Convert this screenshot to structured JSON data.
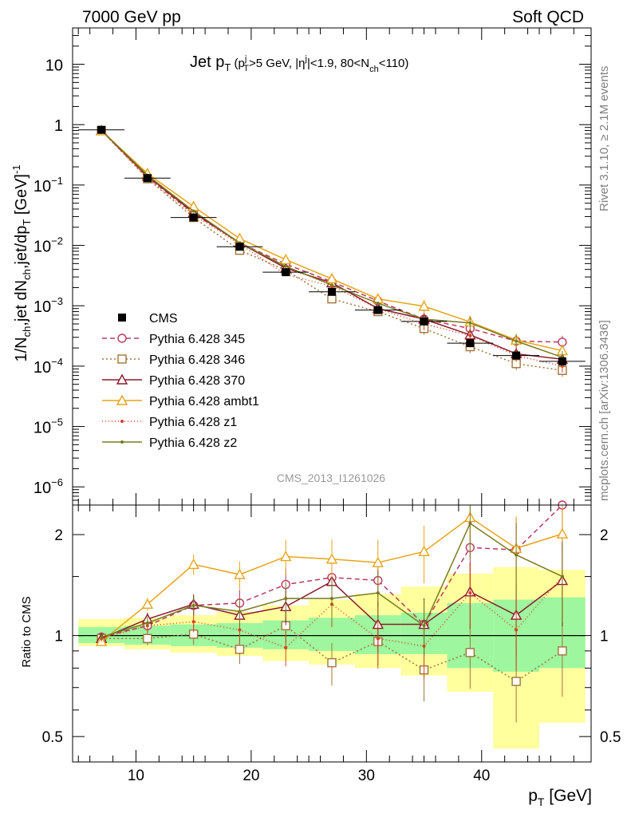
{
  "header": {
    "left": "7000 GeV pp",
    "right": "Soft QCD"
  },
  "side_labels": {
    "rivet": "Rivet 3.1.10, ≥ 2.1M events",
    "mcplots": "mcplots.cern.ch [arXiv:1306.3436]"
  },
  "analysis_id": "CMS_2013_I1261026",
  "chart_data": [
    {
      "type": "line",
      "name": "main",
      "title_parts": {
        "main": "Jet p",
        "sub": "T",
        "rest": " (p",
        "sup_j": "j",
        "sub_T": "T",
        "rest2": ">5 GeV, |η",
        "sup_j2": "j",
        "rest3": "|<1.9, 80<N",
        "sub_ch": "ch",
        "rest4": "<110)"
      },
      "ylabel_parts": {
        "a": "1/N",
        "b": "ch",
        "c": ",jet dN",
        "d": "ch",
        "e": ",jet/dp",
        "f": "T",
        "g": " [GeV]",
        "h": "-1"
      },
      "xlabel_parts": {
        "a": "p",
        "b": "T",
        "c": " [GeV]"
      },
      "yscale": "log",
      "ylim": [
        5e-07,
        40
      ],
      "xlim": [
        4.5,
        49.5
      ],
      "yticks": [
        {
          "value": 10,
          "label": "10"
        },
        {
          "value": 1,
          "label": "1"
        },
        {
          "value": 0.1,
          "base": "10",
          "exp": "−1"
        },
        {
          "value": 0.01,
          "base": "10",
          "exp": "−2"
        },
        {
          "value": 0.001,
          "base": "10",
          "exp": "−3"
        },
        {
          "value": 0.0001,
          "base": "10",
          "exp": "−4"
        },
        {
          "value": 1e-05,
          "base": "10",
          "exp": "−5"
        },
        {
          "value": 1e-06,
          "base": "10",
          "exp": "−6"
        }
      ],
      "x": [
        7,
        11,
        15,
        19,
        23,
        27,
        31,
        35,
        39,
        43,
        47
      ],
      "data": {
        "name": "CMS",
        "values": [
          0.82,
          0.13,
          0.029,
          0.0095,
          0.0036,
          0.0017,
          0.00085,
          0.00055,
          0.00024,
          0.00015,
          0.00012
        ],
        "xerr": 2
      },
      "series": [
        {
          "name": "Pythia 6.428 345",
          "color": "#b83a5e",
          "dash": "6,4",
          "marker": "open-circle",
          "values": [
            0.8,
            0.135,
            0.034,
            0.011,
            0.0049,
            0.0025,
            0.0012,
            0.0006,
            0.00042,
            0.00026,
            0.00025
          ]
        },
        {
          "name": "Pythia 6.428 346",
          "color": "#a0743a",
          "dash": "2,3",
          "marker": "open-square",
          "values": [
            0.8,
            0.127,
            0.029,
            0.0083,
            0.0039,
            0.0013,
            0.0008,
            0.00042,
            0.00021,
            0.00011,
            8.5e-05
          ]
        },
        {
          "name": "Pythia 6.428 370",
          "color": "#8b1a2a",
          "dash": "",
          "marker": "open-triangle",
          "values": [
            0.8,
            0.14,
            0.035,
            0.011,
            0.0042,
            0.0024,
            0.0009,
            0.0006,
            0.00033,
            0.00016,
            0.00013
          ]
        },
        {
          "name": "Pythia 6.428 ambt1",
          "color": "#e8a317",
          "dash": "",
          "marker": "open-triangle",
          "values": [
            0.79,
            0.155,
            0.044,
            0.013,
            0.0058,
            0.0028,
            0.0013,
            0.00098,
            0.00054,
            0.00027,
            0.00018
          ]
        },
        {
          "name": "Pythia 6.428 z1",
          "color": "#d9411e",
          "dash": "1,3",
          "marker": "dot",
          "values": [
            0.8,
            0.13,
            0.032,
            0.0105,
            0.0033,
            0.0021,
            0.0009,
            0.0005,
            0.00032,
            0.00015,
            0.0001
          ]
        },
        {
          "name": "Pythia 6.428 z2",
          "color": "#7a7a1e",
          "dash": "",
          "marker": "dot",
          "values": [
            0.81,
            0.145,
            0.037,
            0.011,
            0.0045,
            0.0022,
            0.0011,
            0.0006,
            0.00052,
            0.00026,
            0.00014
          ]
        }
      ]
    },
    {
      "type": "line",
      "name": "ratio",
      "ylabel": "Ratio to CMS",
      "yscale": "log",
      "ylim": [
        0.42,
        2.45
      ],
      "xlim": [
        4.5,
        49.5
      ],
      "xticks": [
        10,
        20,
        30,
        40
      ],
      "yticks": [
        {
          "value": 2,
          "label": "2"
        },
        {
          "value": 1,
          "label": "1"
        },
        {
          "value": 0.5,
          "label": "0.5"
        }
      ],
      "x": [
        7,
        11,
        15,
        19,
        23,
        27,
        31,
        35,
        39,
        43,
        47
      ],
      "band_inner": [
        [
          0.95,
          1.06
        ],
        [
          0.94,
          1.07
        ],
        [
          0.93,
          1.08
        ],
        [
          0.92,
          1.09
        ],
        [
          0.91,
          1.11
        ],
        [
          0.9,
          1.13
        ],
        [
          0.88,
          1.15
        ],
        [
          0.88,
          1.17
        ],
        [
          0.8,
          1.25
        ],
        [
          0.78,
          1.28
        ],
        [
          0.8,
          1.3
        ]
      ],
      "band_outer": [
        [
          0.93,
          1.12
        ],
        [
          0.91,
          1.13
        ],
        [
          0.89,
          1.15
        ],
        [
          0.87,
          1.18
        ],
        [
          0.84,
          1.23
        ],
        [
          0.82,
          1.28
        ],
        [
          0.8,
          1.33
        ],
        [
          0.76,
          1.4
        ],
        [
          0.68,
          1.53
        ],
        [
          0.46,
          1.6
        ],
        [
          0.55,
          1.57
        ]
      ],
      "series": [
        {
          "name": "Pythia 6.428 345",
          "values": [
            0.99,
            1.07,
            1.23,
            1.25,
            1.42,
            1.49,
            1.46,
            1.08,
            1.83,
            1.8,
            2.45
          ]
        },
        {
          "name": "Pythia 6.428 346",
          "values": [
            0.98,
            0.98,
            1.01,
            0.91,
            1.07,
            0.83,
            0.96,
            0.79,
            0.89,
            0.73,
            0.9
          ]
        },
        {
          "name": "Pythia 6.428 370",
          "values": [
            0.98,
            1.12,
            1.24,
            1.15,
            1.22,
            1.45,
            1.08,
            1.08,
            1.35,
            1.15,
            1.46
          ]
        },
        {
          "name": "Pythia 6.428 ambt1",
          "values": [
            0.96,
            1.24,
            1.63,
            1.52,
            1.72,
            1.69,
            1.65,
            1.78,
            2.25,
            1.82,
            2.01
          ]
        },
        {
          "name": "Pythia 6.428 z1",
          "values": [
            0.98,
            1.07,
            1.1,
            1.04,
            0.92,
            1.24,
            0.98,
            0.93,
            1.34,
            1.04,
            1.5
          ]
        },
        {
          "name": "Pythia 6.428 z2",
          "values": [
            0.99,
            1.09,
            1.23,
            1.18,
            1.29,
            1.29,
            1.34,
            1.07,
            2.16,
            1.74,
            1.5
          ]
        }
      ]
    }
  ]
}
